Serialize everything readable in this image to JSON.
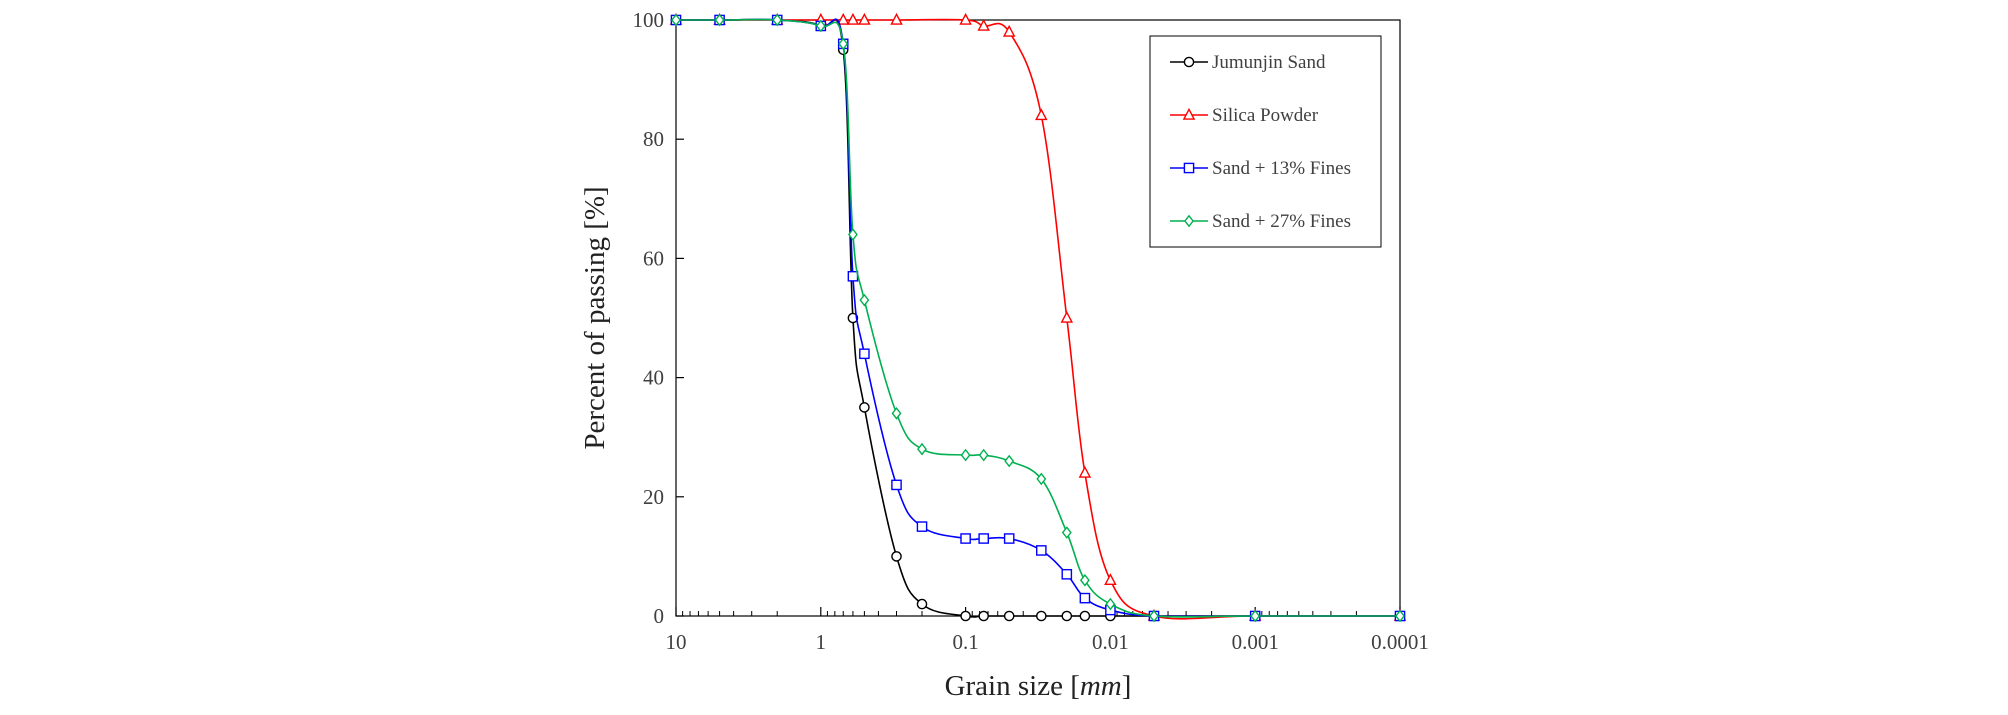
{
  "chart_data": {
    "type": "line",
    "title": "",
    "xlabel": "Grain size [",
    "xlabel_unit": "mm",
    "xlabel_close": "]",
    "ylabel": "Percent of passing [%]",
    "xscale": "log",
    "x_reversed": true,
    "xlim": [
      10,
      0.0001
    ],
    "ylim": [
      0,
      100
    ],
    "x_ticks": [
      10,
      1,
      0.1,
      0.01,
      0.001,
      0.0001
    ],
    "x_tick_labels": [
      "10",
      "1",
      "0.1",
      "0.01",
      "0.001",
      "0.0001"
    ],
    "y_ticks": [
      0,
      20,
      40,
      60,
      80,
      100
    ],
    "y_tick_labels": [
      "0",
      "20",
      "40",
      "60",
      "80",
      "100"
    ],
    "grid": false,
    "legend_position": "top-right",
    "series": [
      {
        "name": "Jumunjin Sand",
        "color": "#000000",
        "marker": "circle",
        "x": [
          10,
          5,
          2,
          1,
          0.7,
          0.6,
          0.5,
          0.3,
          0.2,
          0.1,
          0.075,
          0.05,
          0.03,
          0.02,
          0.015,
          0.01,
          0.005,
          0.001,
          0.0001
        ],
        "y": [
          100,
          100,
          100,
          99,
          95,
          50,
          35,
          10,
          2,
          0,
          0,
          0,
          0,
          0,
          0,
          0,
          0,
          0,
          0
        ]
      },
      {
        "name": "Silica Powder",
        "color": "#ff0000",
        "marker": "triangle",
        "x": [
          10,
          5,
          2,
          1,
          0.7,
          0.6,
          0.5,
          0.3,
          0.1,
          0.075,
          0.05,
          0.03,
          0.02,
          0.015,
          0.01,
          0.005,
          0.001,
          0.0001
        ],
        "y": [
          100,
          100,
          100,
          100,
          100,
          100,
          100,
          100,
          100,
          99,
          98,
          84,
          50,
          24,
          6,
          0,
          0,
          0
        ]
      },
      {
        "name": "Sand + 13% Fines",
        "color": "#0000ff",
        "marker": "square",
        "x": [
          10,
          5,
          2,
          1,
          0.7,
          0.6,
          0.5,
          0.3,
          0.2,
          0.1,
          0.075,
          0.05,
          0.03,
          0.02,
          0.015,
          0.01,
          0.005,
          0.001,
          0.0001
        ],
        "y": [
          100,
          100,
          100,
          99,
          96,
          57,
          44,
          22,
          15,
          13,
          13,
          13,
          11,
          7,
          3,
          1,
          0,
          0,
          0
        ]
      },
      {
        "name": "Sand + 27% Fines",
        "color": "#00b050",
        "marker": "diamond",
        "x": [
          10,
          5,
          2,
          1,
          0.7,
          0.6,
          0.5,
          0.3,
          0.2,
          0.1,
          0.075,
          0.05,
          0.03,
          0.02,
          0.015,
          0.01,
          0.005,
          0.001,
          0.0001
        ],
        "y": [
          100,
          100,
          100,
          99,
          96,
          64,
          53,
          34,
          28,
          27,
          27,
          26,
          23,
          14,
          6,
          2,
          0,
          0,
          0
        ]
      }
    ]
  }
}
